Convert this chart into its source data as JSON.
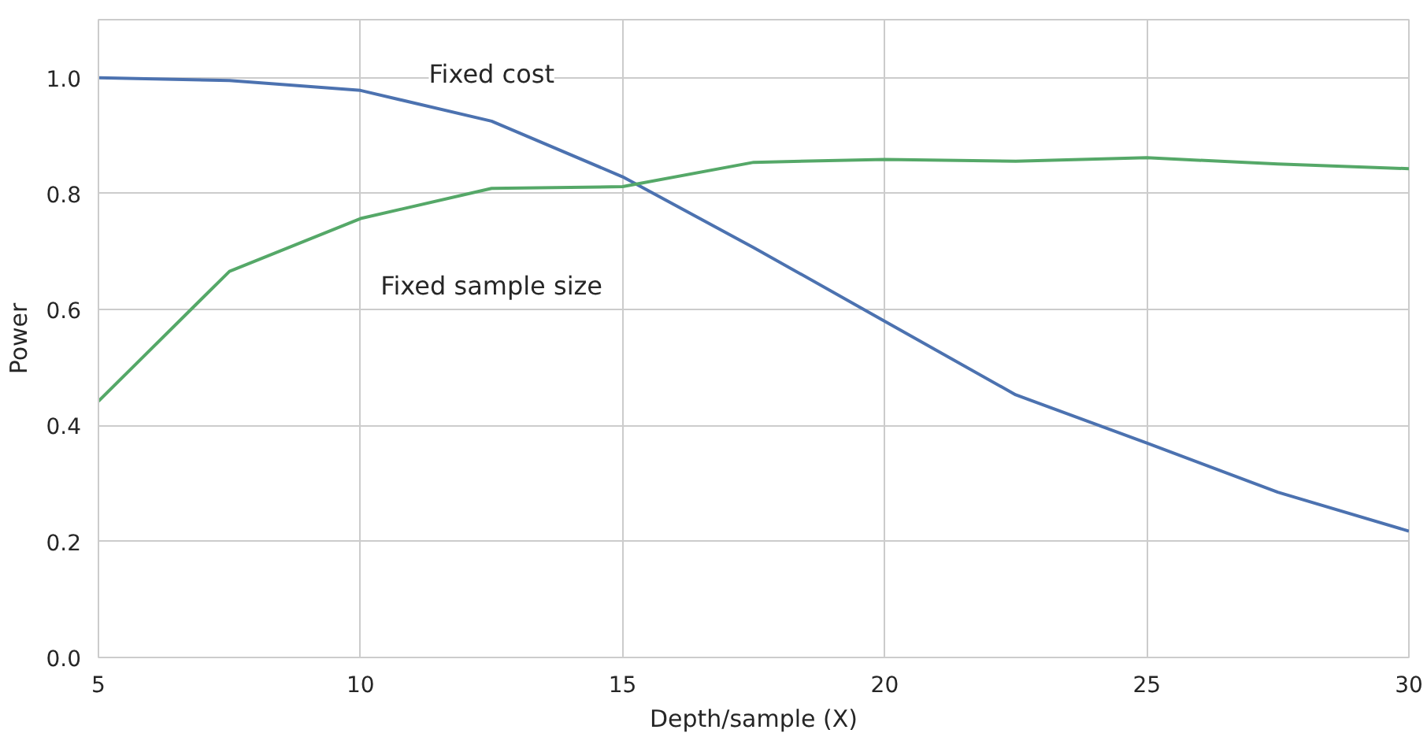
{
  "chart_data": {
    "type": "line",
    "xlabel": "Depth/sample (X)",
    "ylabel": "Power",
    "x": [
      5,
      7.5,
      10,
      12.5,
      15,
      17.5,
      20,
      22.5,
      25,
      27.5,
      30
    ],
    "series": [
      {
        "name": "Fixed cost",
        "color": "#4c72b0",
        "values": [
          1.0,
          0.995,
          0.978,
          0.925,
          0.829,
          0.707,
          0.58,
          0.453,
          0.37,
          0.285,
          0.218
        ]
      },
      {
        "name": "Fixed sample size",
        "color": "#55a868",
        "values": [
          0.442,
          0.666,
          0.757,
          0.809,
          0.812,
          0.854,
          0.859,
          0.856,
          0.862,
          0.851,
          0.843
        ]
      }
    ],
    "xlim": [
      5,
      30
    ],
    "ylim": [
      0,
      1.1
    ],
    "xticks": [
      5,
      10,
      15,
      20,
      25,
      30
    ],
    "yticks": [
      {
        "value": 0,
        "label": "0.0"
      },
      {
        "value": 0.2,
        "label": "0.2"
      },
      {
        "value": 0.4,
        "label": "0.4"
      },
      {
        "value": 0.6,
        "label": "0.6"
      },
      {
        "value": 0.8,
        "label": "0.8"
      },
      {
        "value": 1.0,
        "label": "1.0"
      }
    ],
    "grid": true,
    "legend": false,
    "line_style": "solid",
    "marker": "none"
  }
}
